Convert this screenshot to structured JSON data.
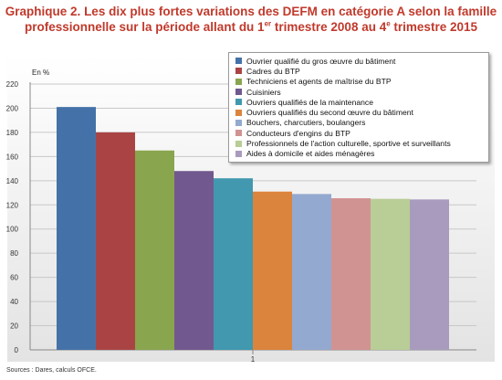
{
  "title": {
    "line1": "Graphique 2. Les dix plus fortes variations des DEFM en catégorie A selon la famille",
    "line2_pre": "professionnelle sur la période allant du 1",
    "line2_sup1": "er",
    "line2_mid": " trimestre 2008 au 4",
    "line2_sup2": "e",
    "line2_post": " trimestre 2015"
  },
  "source": "Sources : Dares, calculs OFCE.",
  "chart_data": {
    "type": "bar",
    "categories": [
      "1"
    ],
    "ylabel": "En %",
    "ylim": [
      0,
      220
    ],
    "yticks": [
      0,
      20,
      40,
      60,
      80,
      100,
      120,
      140,
      160,
      180,
      200,
      220
    ],
    "grid": true,
    "legend_position": "top-right",
    "series": [
      {
        "name": "Ouvrier qualifié du gros œuvre du bâtiment",
        "values": [
          201
        ],
        "color": "#4472a8"
      },
      {
        "name": "Cadres du BTP",
        "values": [
          180
        ],
        "color": "#aa4444"
      },
      {
        "name": "Techniciens et agents de maîtrise du BTP",
        "values": [
          165
        ],
        "color": "#89a54e"
      },
      {
        "name": "Cuisiniers",
        "values": [
          148
        ],
        "color": "#71588f"
      },
      {
        "name": "Ouvriers qualifiés de la maintenance",
        "values": [
          142
        ],
        "color": "#4198af"
      },
      {
        "name": "Ouvriers qualifiés du second œuvre du bâtiment",
        "values": [
          131
        ],
        "color": "#db843d"
      },
      {
        "name": "Bouchers, charcutiers, boulangers",
        "values": [
          129
        ],
        "color": "#93a9cf"
      },
      {
        "name": "Conducteurs d'engins du BTP",
        "values": [
          125.5
        ],
        "color": "#d19392"
      },
      {
        "name": "Professionnels de l'action culturelle, sportive et surveillants",
        "values": [
          125
        ],
        "color": "#b9cd96"
      },
      {
        "name": "Aides à domicile et aides ménagères",
        "values": [
          124.5
        ],
        "color": "#a99bbd"
      }
    ]
  }
}
